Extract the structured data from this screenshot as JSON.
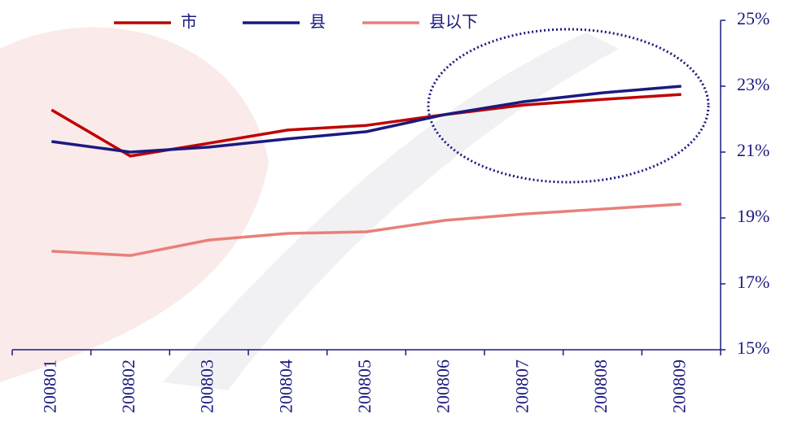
{
  "chart_data": {
    "type": "line",
    "categories": [
      "200801",
      "200802",
      "200803",
      "200804",
      "200805",
      "200806",
      "200807",
      "200808",
      "200809"
    ],
    "series": [
      {
        "name": "市",
        "color": "#c00000",
        "values": [
          22.28,
          20.88,
          21.27,
          21.67,
          21.81,
          22.14,
          22.43,
          22.6,
          22.75
        ]
      },
      {
        "name": "县",
        "color": "#1a1a80",
        "values": [
          21.32,
          21.0,
          21.15,
          21.4,
          21.62,
          22.14,
          22.53,
          22.8,
          23.0
        ]
      },
      {
        "name": "县以下",
        "color": "#e8807a",
        "values": [
          17.99,
          17.86,
          18.33,
          18.53,
          18.58,
          18.93,
          19.12,
          19.27,
          19.42
        ]
      }
    ],
    "ylim": [
      15,
      25
    ],
    "yticks": [
      {
        "value": 15,
        "label": "15%"
      },
      {
        "value": 17,
        "label": "17%"
      },
      {
        "value": 19,
        "label": "19%"
      },
      {
        "value": 21,
        "label": "21%"
      },
      {
        "value": 23,
        "label": "23%"
      },
      {
        "value": 25,
        "label": "25%"
      }
    ],
    "y_axis_side": "right",
    "legend_position": "top"
  }
}
